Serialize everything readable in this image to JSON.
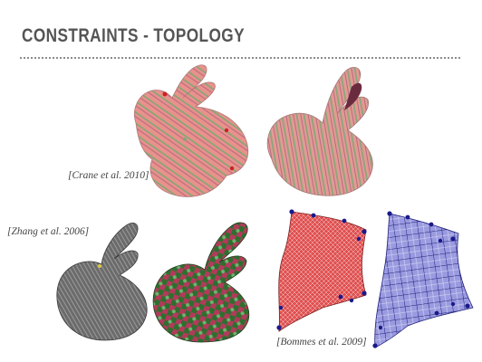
{
  "slide": {
    "title": "CONSTRAINTS - TOPOLOGY"
  },
  "figures": {
    "crane": {
      "citation": "[Crane et al. 2010]",
      "colors": {
        "base": "#e8928a",
        "stripe_green": "#7fa77a",
        "singularity": "#cc2222"
      }
    },
    "zhang": {
      "citation": "[Zhang et al. 2006]",
      "colors": {
        "grey": "#6b6b6b",
        "texture_green": "#3c8a3c",
        "texture_red": "#b23a5a"
      }
    },
    "bommes": {
      "citation": "[Bommes et al. 2009]",
      "colors": {
        "red_mesh": "#d64545",
        "blue_mesh": "#8f8fd9",
        "vertex": "#1a1a8c"
      }
    }
  }
}
